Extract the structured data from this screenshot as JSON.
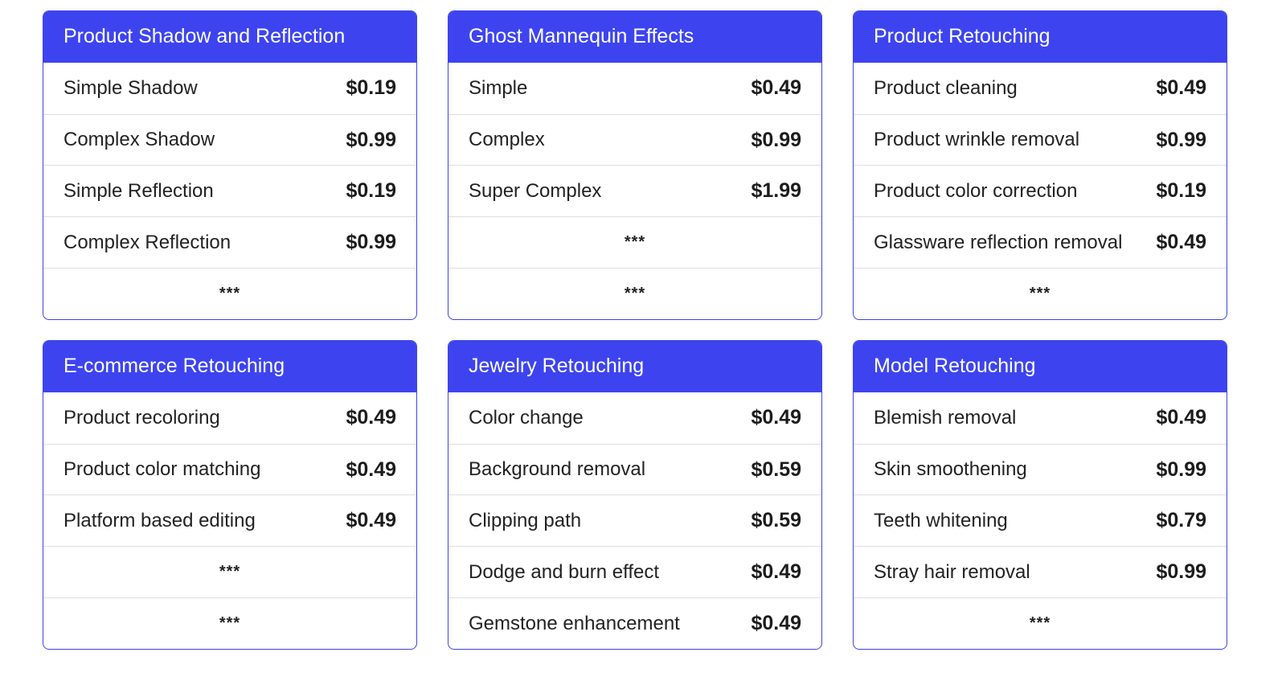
{
  "cards": [
    {
      "title": "Product Shadow and Reflection",
      "items": [
        {
          "label": "Simple Shadow",
          "price": "$0.19"
        },
        {
          "label": "Complex Shadow",
          "price": "$0.99"
        },
        {
          "label": "Simple Reflection",
          "price": "$0.19"
        },
        {
          "label": "Complex Reflection",
          "price": "$0.99"
        }
      ],
      "ellipses": [
        "***"
      ]
    },
    {
      "title": "Ghost Mannequin Effects",
      "items": [
        {
          "label": "Simple",
          "price": "$0.49"
        },
        {
          "label": "Complex",
          "price": "$0.99"
        },
        {
          "label": "Super Complex",
          "price": "$1.99"
        }
      ],
      "ellipses": [
        "***",
        "***"
      ]
    },
    {
      "title": "Product Retouching",
      "items": [
        {
          "label": "Product cleaning",
          "price": "$0.49"
        },
        {
          "label": "Product wrinkle removal",
          "price": "$0.99"
        },
        {
          "label": "Product color correction",
          "price": "$0.19"
        },
        {
          "label": "Glassware reflection removal",
          "price": "$0.49"
        }
      ],
      "ellipses": [
        "***"
      ]
    },
    {
      "title": "E-commerce Retouching",
      "items": [
        {
          "label": "Product recoloring",
          "price": "$0.49"
        },
        {
          "label": "Product color matching",
          "price": "$0.49"
        },
        {
          "label": "Platform based editing",
          "price": "$0.49"
        }
      ],
      "ellipses": [
        "***",
        "***"
      ]
    },
    {
      "title": "Jewelry Retouching",
      "items": [
        {
          "label": "Color change",
          "price": "$0.49"
        },
        {
          "label": "Background removal",
          "price": "$0.59"
        },
        {
          "label": "Clipping path",
          "price": "$0.59"
        },
        {
          "label": "Dodge and burn effect",
          "price": "$0.49"
        },
        {
          "label": "Gemstone enhancement",
          "price": "$0.49"
        }
      ],
      "ellipses": []
    },
    {
      "title": "Model Retouching",
      "items": [
        {
          "label": "Blemish removal",
          "price": "$0.49"
        },
        {
          "label": "Skin smoothening",
          "price": "$0.99"
        },
        {
          "label": "Teeth whitening",
          "price": "$0.79"
        },
        {
          "label": "Stray hair removal",
          "price": "$0.99"
        }
      ],
      "ellipses": [
        "***"
      ]
    }
  ],
  "colors": {
    "header_bg": "#3d44ef",
    "border": "#3d44e6",
    "divider": "#dedede"
  }
}
